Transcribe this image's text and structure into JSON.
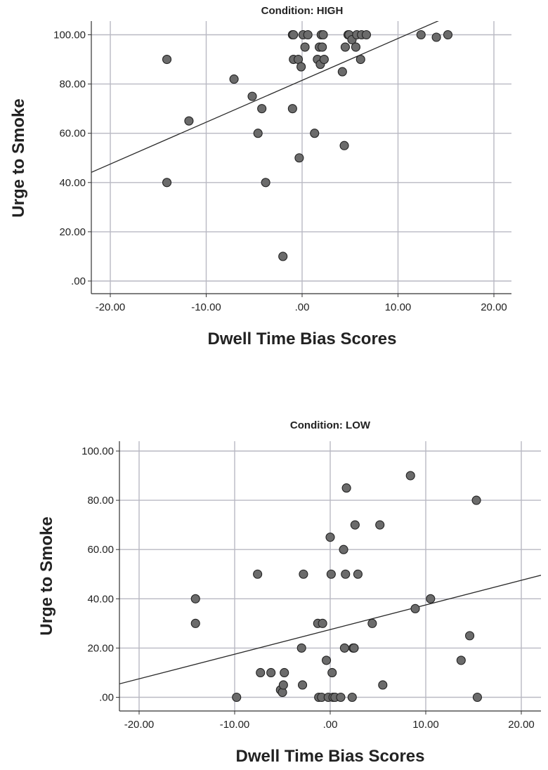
{
  "chart_data": [
    {
      "type": "scatter",
      "title": "Condition: HIGH",
      "xlabel": "Dwell Time Bias Scores",
      "ylabel": "Urge to Smoke",
      "xlim": [
        -22,
        22
      ],
      "ylim": [
        -4,
        106
      ],
      "x_ticks": [
        -20,
        -10,
        0,
        10,
        20
      ],
      "y_ticks": [
        0,
        20,
        40,
        60,
        80,
        100
      ],
      "x_tick_labels": [
        "-20.00",
        "-10.00",
        ".00",
        "10.00",
        "20.00"
      ],
      "y_tick_labels": [
        ".00",
        "20.00",
        "40.00",
        "60.00",
        "80.00",
        "100.00"
      ],
      "grid": true,
      "fit_line": {
        "intercept": 81.5,
        "slope": 1.7
      },
      "points": [
        {
          "x": -14.1,
          "y": 90
        },
        {
          "x": -14.1,
          "y": 40
        },
        {
          "x": -11.8,
          "y": 65
        },
        {
          "x": -7.1,
          "y": 82
        },
        {
          "x": -5.2,
          "y": 75
        },
        {
          "x": -4.6,
          "y": 60
        },
        {
          "x": -4.2,
          "y": 70
        },
        {
          "x": -3.8,
          "y": 40
        },
        {
          "x": -2.0,
          "y": 10
        },
        {
          "x": -1.0,
          "y": 100
        },
        {
          "x": -0.9,
          "y": 100
        },
        {
          "x": -0.9,
          "y": 90
        },
        {
          "x": -1.0,
          "y": 70
        },
        {
          "x": -0.4,
          "y": 90
        },
        {
          "x": -0.3,
          "y": 50
        },
        {
          "x": -0.1,
          "y": 87
        },
        {
          "x": 0.1,
          "y": 100
        },
        {
          "x": 0.3,
          "y": 95
        },
        {
          "x": 0.6,
          "y": 100
        },
        {
          "x": 1.3,
          "y": 60
        },
        {
          "x": 1.6,
          "y": 90
        },
        {
          "x": 1.8,
          "y": 95
        },
        {
          "x": 1.9,
          "y": 88
        },
        {
          "x": 2.0,
          "y": 100
        },
        {
          "x": 2.1,
          "y": 95
        },
        {
          "x": 2.2,
          "y": 100
        },
        {
          "x": 2.3,
          "y": 90
        },
        {
          "x": 4.2,
          "y": 85
        },
        {
          "x": 4.4,
          "y": 55
        },
        {
          "x": 4.5,
          "y": 95
        },
        {
          "x": 4.8,
          "y": 100
        },
        {
          "x": 4.9,
          "y": 100
        },
        {
          "x": 5.2,
          "y": 98
        },
        {
          "x": 5.6,
          "y": 95
        },
        {
          "x": 5.7,
          "y": 100
        },
        {
          "x": 6.1,
          "y": 90
        },
        {
          "x": 6.2,
          "y": 100
        },
        {
          "x": 6.7,
          "y": 100
        },
        {
          "x": 12.4,
          "y": 100
        },
        {
          "x": 14.0,
          "y": 99
        },
        {
          "x": 15.2,
          "y": 100
        }
      ]
    },
    {
      "type": "scatter",
      "title": "Condition: LOW",
      "xlabel": "Dwell Time Bias Scores",
      "ylabel": "Urge to Smoke",
      "xlim": [
        -22,
        22
      ],
      "ylim": [
        -4,
        106
      ],
      "x_ticks": [
        -20,
        -10,
        0,
        10,
        20
      ],
      "y_ticks": [
        0,
        20,
        40,
        60,
        80,
        100
      ],
      "x_tick_labels": [
        "-20.00",
        "-10.00",
        ".00",
        "10.00",
        "20.00"
      ],
      "y_tick_labels": [
        ".00",
        "20.00",
        "40.00",
        "60.00",
        "80.00",
        "100.00"
      ],
      "grid": true,
      "fit_line": {
        "intercept": 27.5,
        "slope": 1.0
      },
      "points": [
        {
          "x": -14.1,
          "y": 40
        },
        {
          "x": -14.1,
          "y": 30
        },
        {
          "x": -9.8,
          "y": 0
        },
        {
          "x": -7.6,
          "y": 50
        },
        {
          "x": -7.3,
          "y": 10
        },
        {
          "x": -6.2,
          "y": 10
        },
        {
          "x": -5.2,
          "y": 3
        },
        {
          "x": -5.0,
          "y": 2
        },
        {
          "x": -4.9,
          "y": 5
        },
        {
          "x": -4.8,
          "y": 10
        },
        {
          "x": -3.0,
          "y": 20
        },
        {
          "x": -2.9,
          "y": 5
        },
        {
          "x": -2.8,
          "y": 50
        },
        {
          "x": -1.3,
          "y": 30
        },
        {
          "x": -1.2,
          "y": 0
        },
        {
          "x": -0.9,
          "y": 0
        },
        {
          "x": -0.8,
          "y": 30
        },
        {
          "x": -0.4,
          "y": 15
        },
        {
          "x": -0.2,
          "y": 0
        },
        {
          "x": 0.0,
          "y": 65
        },
        {
          "x": 0.1,
          "y": 50
        },
        {
          "x": 0.2,
          "y": 10
        },
        {
          "x": 0.3,
          "y": 0
        },
        {
          "x": 0.5,
          "y": 0
        },
        {
          "x": 1.1,
          "y": 0
        },
        {
          "x": 1.4,
          "y": 60
        },
        {
          "x": 1.5,
          "y": 20
        },
        {
          "x": 1.6,
          "y": 50
        },
        {
          "x": 1.7,
          "y": 85
        },
        {
          "x": 2.3,
          "y": 0
        },
        {
          "x": 2.4,
          "y": 20
        },
        {
          "x": 2.5,
          "y": 20
        },
        {
          "x": 2.6,
          "y": 70
        },
        {
          "x": 2.9,
          "y": 50
        },
        {
          "x": 4.4,
          "y": 30
        },
        {
          "x": 5.2,
          "y": 70
        },
        {
          "x": 5.5,
          "y": 5
        },
        {
          "x": 8.4,
          "y": 90
        },
        {
          "x": 8.9,
          "y": 36
        },
        {
          "x": 10.5,
          "y": 40
        },
        {
          "x": 13.7,
          "y": 15
        },
        {
          "x": 14.6,
          "y": 25
        },
        {
          "x": 15.3,
          "y": 80
        },
        {
          "x": 15.4,
          "y": 0
        }
      ]
    }
  ]
}
